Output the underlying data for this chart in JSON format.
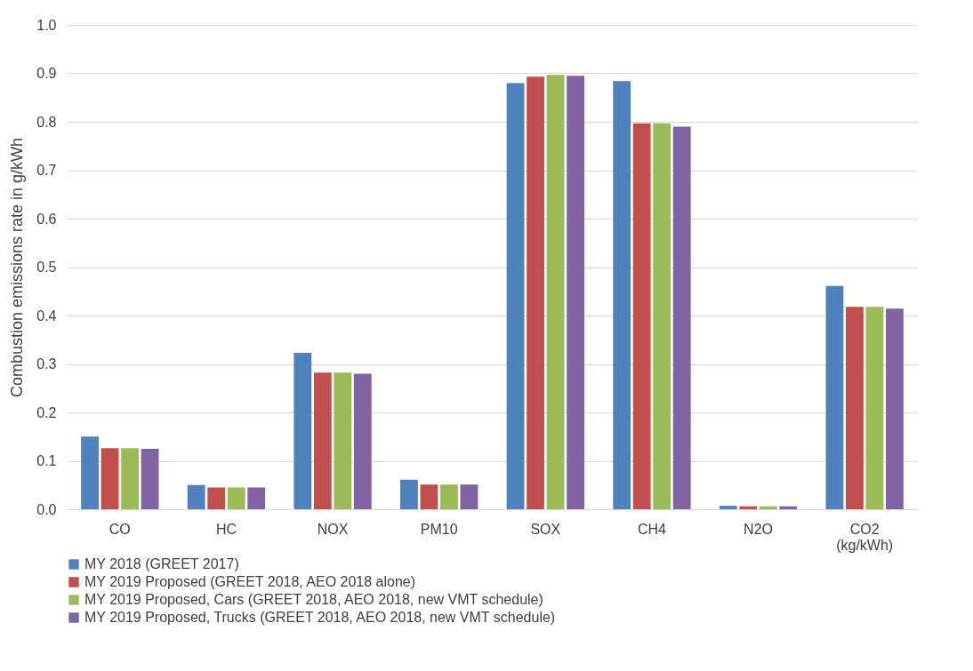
{
  "chart_data": {
    "type": "bar",
    "ylabel": "Combustion emissions rate in g/kWh",
    "categories": [
      "CO",
      "HC",
      "NOX",
      "PM10",
      "SOX",
      "CH4",
      "N2O",
      "CO2 (kg/kWh)"
    ],
    "series": [
      {
        "name": "MY 2018 (GREET 2017)",
        "color": "#4f81bd",
        "values": [
          0.15,
          0.05,
          0.323,
          0.061,
          0.88,
          0.884,
          0.007,
          0.461
        ]
      },
      {
        "name": "MY 2019 Proposed (GREET 2018, AEO 2018 alone)",
        "color": "#c0504d",
        "values": [
          0.126,
          0.045,
          0.282,
          0.051,
          0.893,
          0.797,
          0.006,
          0.418
        ]
      },
      {
        "name": "MY 2019 Proposed, Cars (GREET 2018, AEO 2018, new VMT schedule)",
        "color": "#9bbb59",
        "values": [
          0.126,
          0.045,
          0.282,
          0.051,
          0.897,
          0.797,
          0.006,
          0.418
        ]
      },
      {
        "name": "MY 2019 Proposed, Trucks (GREET 2018, AEO 2018, new VMT schedule)",
        "color": "#8064a2",
        "values": [
          0.125,
          0.045,
          0.28,
          0.051,
          0.895,
          0.79,
          0.006,
          0.414
        ]
      }
    ],
    "ylim": [
      0,
      1
    ],
    "yticks": [
      {
        "value": 0,
        "label": "0.0"
      },
      {
        "value": 0.1,
        "label": "0.1"
      },
      {
        "value": 0.2,
        "label": "0.2"
      },
      {
        "value": 0.3,
        "label": "0.3"
      },
      {
        "value": 0.4,
        "label": "0.4"
      },
      {
        "value": 0.5,
        "label": "0.5"
      },
      {
        "value": 0.6,
        "label": "0.6"
      },
      {
        "value": 0.7,
        "label": "0.7"
      },
      {
        "value": 0.8,
        "label": "0.8"
      },
      {
        "value": 0.9,
        "label": "0.9"
      },
      {
        "value": 1,
        "label": "1.0"
      }
    ],
    "grid": "y",
    "legend": "bottom"
  }
}
